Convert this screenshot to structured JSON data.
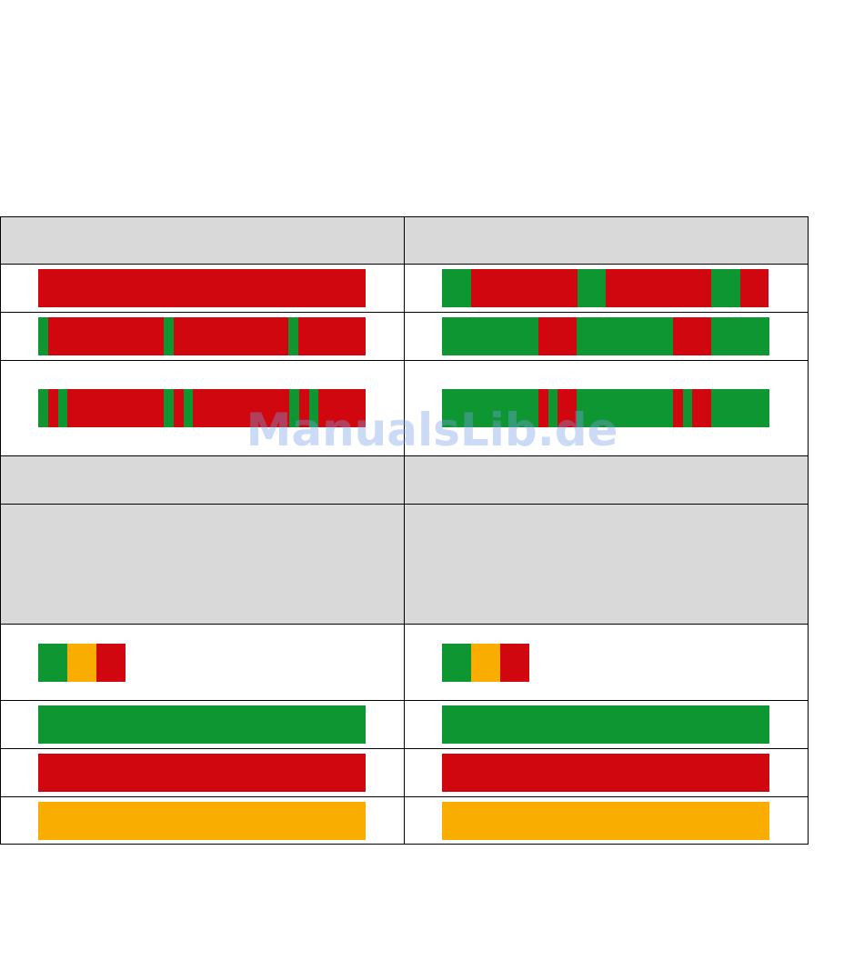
{
  "watermark": {
    "text": "ManualsLib.de"
  },
  "colors": {
    "green": "#0e9632",
    "red": "#d0070e",
    "amber": "#f9ad00",
    "header_gray": "#d9d9d9",
    "border": "#000000"
  },
  "table": {
    "rows": [
      {
        "kind": "header",
        "height": 52
      },
      {
        "kind": "bars",
        "height": 53,
        "bars": [
          {
            "segments": [
              [
                "red",
                360
              ]
            ]
          },
          {
            "segments": [
              [
                "green",
                32
              ],
              [
                "red",
                117
              ],
              [
                "green",
                31
              ],
              [
                "red",
                116
              ],
              [
                "green",
                32
              ],
              [
                "red",
                31
              ]
            ]
          }
        ]
      },
      {
        "kind": "bars",
        "height": 53,
        "bars": [
          {
            "segments": [
              [
                "green",
                11
              ],
              [
                "red",
                127
              ],
              [
                "green",
                11
              ],
              [
                "red",
                126
              ],
              [
                "green",
                11
              ],
              [
                "red",
                74
              ]
            ]
          },
          {
            "segments": [
              [
                "green",
                106
              ],
              [
                "red",
                42
              ],
              [
                "green",
                106
              ],
              [
                "red",
                42
              ],
              [
                "green",
                64
              ]
            ]
          }
        ]
      },
      {
        "kind": "bars",
        "height": 105,
        "bars": [
          {
            "segments": [
              [
                "green",
                11
              ],
              [
                "red",
                11
              ],
              [
                "green",
                10
              ],
              [
                "red",
                106
              ],
              [
                "green",
                11
              ],
              [
                "red",
                11
              ],
              [
                "green",
                10
              ],
              [
                "red",
                106
              ],
              [
                "green",
                11
              ],
              [
                "red",
                11
              ],
              [
                "green",
                10
              ],
              [
                "red",
                52
              ]
            ]
          },
          {
            "segments": [
              [
                "green",
                106
              ],
              [
                "red",
                11
              ],
              [
                "green",
                10
              ],
              [
                "red",
                21
              ],
              [
                "green",
                106
              ],
              [
                "red",
                11
              ],
              [
                "green",
                10
              ],
              [
                "red",
                21
              ],
              [
                "green",
                64
              ]
            ]
          }
        ]
      },
      {
        "kind": "header",
        "height": 53
      },
      {
        "kind": "header",
        "height": 132
      },
      {
        "kind": "bars",
        "height": 84,
        "bars": [
          {
            "segments": [
              [
                "green",
                32
              ],
              [
                "amber",
                32
              ],
              [
                "red",
                32
              ]
            ]
          },
          {
            "segments": [
              [
                "green",
                32
              ],
              [
                "amber",
                32
              ],
              [
                "red",
                32
              ]
            ]
          }
        ]
      },
      {
        "kind": "bars",
        "height": 53,
        "bars": [
          {
            "segments": [
              [
                "green",
                360
              ]
            ]
          },
          {
            "segments": [
              [
                "green",
                360
              ]
            ]
          }
        ]
      },
      {
        "kind": "bars",
        "height": 53,
        "bars": [
          {
            "segments": [
              [
                "red",
                360
              ]
            ]
          },
          {
            "segments": [
              [
                "red",
                360
              ]
            ]
          }
        ]
      },
      {
        "kind": "bars",
        "height": 52,
        "bars": [
          {
            "segments": [
              [
                "amber",
                360
              ]
            ]
          },
          {
            "segments": [
              [
                "amber",
                360
              ]
            ]
          }
        ]
      }
    ]
  }
}
